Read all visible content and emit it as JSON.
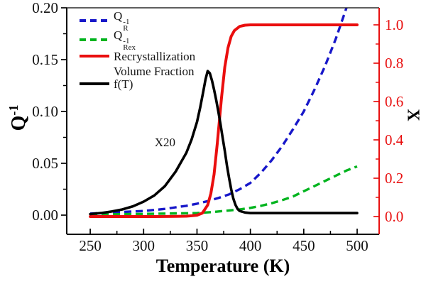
{
  "figure": {
    "background": "#ffffff"
  },
  "chart_data": {
    "type": "line",
    "title": "",
    "xlabel": "Temperature (K)",
    "ylabel_left": {
      "base": "Q",
      "sup": "-1"
    },
    "ylabel_right": "X",
    "grid": false,
    "legend_position": "top-left-inside",
    "xlim": [
      228,
      520.6
    ],
    "ylim_left": [
      -0.0185,
      0.2
    ],
    "ylim_right": [
      -0.0926,
      1.0889
    ],
    "x_ticks": [
      {
        "v": 250,
        "label": "250"
      },
      {
        "v": 300,
        "label": "300"
      },
      {
        "v": 350,
        "label": "350"
      },
      {
        "v": 400,
        "label": "400"
      },
      {
        "v": 450,
        "label": "450"
      },
      {
        "v": 500,
        "label": "500"
      }
    ],
    "x_minor_ticks": [
      275,
      325,
      375,
      425,
      475
    ],
    "y_ticks_left": [
      {
        "v": 0.0,
        "label": "0.00"
      },
      {
        "v": 0.05,
        "label": "0.05"
      },
      {
        "v": 0.1,
        "label": "0.10"
      },
      {
        "v": 0.15,
        "label": "0.15"
      },
      {
        "v": 0.2,
        "label": "0.20"
      }
    ],
    "y_minor_ticks_left": [
      0.025,
      0.075,
      0.125,
      0.175
    ],
    "y_ticks_right": [
      {
        "v": 0.0,
        "label": "0.0"
      },
      {
        "v": 0.2,
        "label": "0.2"
      },
      {
        "v": 0.4,
        "label": "0.4"
      },
      {
        "v": 0.6,
        "label": "0.6"
      },
      {
        "v": 0.8,
        "label": "0.8"
      },
      {
        "v": 1.0,
        "label": "1.0"
      }
    ],
    "y_minor_ticks_right": [
      0.1,
      0.3,
      0.5,
      0.7,
      0.9
    ],
    "axis_colors": {
      "left": "#000000",
      "bottom": "#000000",
      "top": "#2a2a2a",
      "right": "#e81010"
    },
    "tick_label_colors": {
      "left": "#111111",
      "bottom": "#111111",
      "right": "#e81010"
    },
    "annotations": [
      {
        "text": "X20",
        "x": 320,
        "y": 0.07,
        "axis": "left"
      }
    ],
    "series": [
      {
        "name": "Q_R_inverse",
        "axis": "left",
        "color": "#1717c9",
        "style": "dashed",
        "dash": "10 6",
        "width": 3.4,
        "points": [
          [
            250,
            0.0015
          ],
          [
            260,
            0.002
          ],
          [
            270,
            0.0025
          ],
          [
            280,
            0.003
          ],
          [
            290,
            0.0035
          ],
          [
            300,
            0.004
          ],
          [
            310,
            0.005
          ],
          [
            320,
            0.006
          ],
          [
            330,
            0.0075
          ],
          [
            340,
            0.009
          ],
          [
            350,
            0.011
          ],
          [
            360,
            0.0135
          ],
          [
            370,
            0.0165
          ],
          [
            380,
            0.02
          ],
          [
            390,
            0.025
          ],
          [
            400,
            0.031
          ],
          [
            410,
            0.041
          ],
          [
            420,
            0.053
          ],
          [
            430,
            0.067
          ],
          [
            440,
            0.083
          ],
          [
            450,
            0.1
          ],
          [
            460,
            0.121
          ],
          [
            470,
            0.144
          ],
          [
            480,
            0.17
          ],
          [
            490,
            0.2
          ],
          [
            497,
            0.222
          ]
        ]
      },
      {
        "name": "Q_Rex_inverse",
        "axis": "left",
        "color": "#00b41e",
        "style": "dashed",
        "dash": "10 6",
        "width": 3.4,
        "points": [
          [
            250,
            0.0005
          ],
          [
            270,
            0.0008
          ],
          [
            290,
            0.001
          ],
          [
            310,
            0.0013
          ],
          [
            330,
            0.0017
          ],
          [
            350,
            0.002
          ],
          [
            365,
            0.003
          ],
          [
            380,
            0.0045
          ],
          [
            390,
            0.0055
          ],
          [
            400,
            0.007
          ],
          [
            410,
            0.009
          ],
          [
            420,
            0.0115
          ],
          [
            430,
            0.0145
          ],
          [
            440,
            0.018
          ],
          [
            450,
            0.023
          ],
          [
            460,
            0.028
          ],
          [
            470,
            0.033
          ],
          [
            480,
            0.038
          ],
          [
            490,
            0.043
          ],
          [
            500,
            0.047
          ]
        ]
      },
      {
        "name": "recrystallization_volume_fraction",
        "axis": "right",
        "color": "#ea0e0e",
        "style": "solid",
        "dash": null,
        "width": 4,
        "points": [
          [
            250,
            0.0
          ],
          [
            280,
            0.0
          ],
          [
            310,
            0.0
          ],
          [
            330,
            0.001
          ],
          [
            340,
            0.002
          ],
          [
            345,
            0.004
          ],
          [
            350,
            0.007
          ],
          [
            355,
            0.018
          ],
          [
            360,
            0.06
          ],
          [
            363,
            0.12
          ],
          [
            366,
            0.22
          ],
          [
            369,
            0.38
          ],
          [
            371,
            0.5
          ],
          [
            373,
            0.62
          ],
          [
            376,
            0.78
          ],
          [
            379,
            0.88
          ],
          [
            382,
            0.94
          ],
          [
            385,
            0.97
          ],
          [
            390,
            0.992
          ],
          [
            395,
            0.998
          ],
          [
            400,
            1.0
          ],
          [
            425,
            1.0
          ],
          [
            450,
            1.0
          ],
          [
            475,
            1.0
          ],
          [
            500,
            1.0
          ]
        ]
      },
      {
        "name": "f_T",
        "axis": "left",
        "color": "#000000",
        "style": "solid",
        "dash": null,
        "width": 3.6,
        "points": [
          [
            250,
            0.001
          ],
          [
            260,
            0.002
          ],
          [
            270,
            0.0035
          ],
          [
            280,
            0.0055
          ],
          [
            290,
            0.0085
          ],
          [
            300,
            0.013
          ],
          [
            310,
            0.019
          ],
          [
            320,
            0.028
          ],
          [
            330,
            0.042
          ],
          [
            335,
            0.051
          ],
          [
            340,
            0.06
          ],
          [
            345,
            0.073
          ],
          [
            350,
            0.09
          ],
          [
            353,
            0.104
          ],
          [
            356,
            0.12
          ],
          [
            358,
            0.131
          ],
          [
            360,
            0.139
          ],
          [
            362,
            0.137
          ],
          [
            364,
            0.13
          ],
          [
            366,
            0.121
          ],
          [
            368,
            0.111
          ],
          [
            370,
            0.1
          ],
          [
            372,
            0.088
          ],
          [
            374,
            0.075
          ],
          [
            376,
            0.062
          ],
          [
            378,
            0.048
          ],
          [
            380,
            0.036
          ],
          [
            382,
            0.025
          ],
          [
            384,
            0.016
          ],
          [
            386,
            0.01
          ],
          [
            388,
            0.006
          ],
          [
            390,
            0.004
          ],
          [
            395,
            0.0025
          ],
          [
            400,
            0.002
          ],
          [
            425,
            0.002
          ],
          [
            450,
            0.002
          ],
          [
            475,
            0.002
          ],
          [
            500,
            0.002
          ]
        ]
      }
    ]
  },
  "legend": {
    "items": [
      {
        "series": 0,
        "base": "Q",
        "sup": "-1",
        "sub": "R"
      },
      {
        "series": 1,
        "base": "Q",
        "sup": "-1",
        "sub": "Rex"
      },
      {
        "series": 2,
        "lines": [
          "Recrystallization",
          "Volume Fraction"
        ]
      },
      {
        "series": 3,
        "label": "f(T)"
      }
    ]
  }
}
